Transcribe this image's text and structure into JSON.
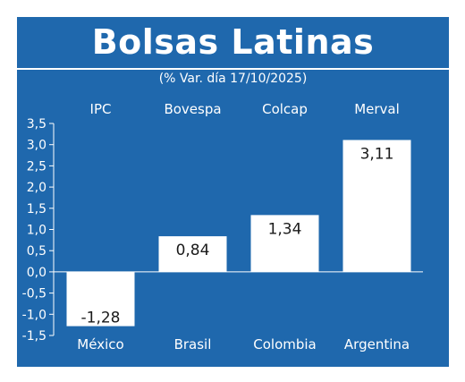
{
  "chart_data": {
    "type": "bar",
    "title": "Bolsas Latinas",
    "subtitle": "(% Var. día 17/10/2025)",
    "series_labels_top": [
      "IPC",
      "Bovespa",
      "Colcap",
      "Merval"
    ],
    "categories": [
      "México",
      "Brasil",
      "Colombia",
      "Argentina"
    ],
    "values": [
      -1.28,
      0.84,
      1.34,
      3.11
    ],
    "value_labels": [
      "-1,28",
      "0,84",
      "1,34",
      "3,11"
    ],
    "ylim": [
      -1.5,
      3.5
    ],
    "yticks": [
      3.5,
      3.0,
      2.5,
      2.0,
      1.5,
      1.0,
      0.5,
      0.0,
      -0.5,
      -1.0,
      -1.5
    ],
    "ytick_labels": [
      "3,5",
      "3,0",
      "2,5",
      "2,0",
      "1,5",
      "1,0",
      "0,5",
      "0,0",
      "-0,5",
      "-1,0",
      "-1,5"
    ],
    "xlabel": "",
    "ylabel": "",
    "grid": false,
    "colors": {
      "panel": "#1f68ad",
      "bar": "#ffffff",
      "axis": "#ffffff",
      "text": "#ffffff",
      "value_text": "#1a1a1a"
    }
  }
}
